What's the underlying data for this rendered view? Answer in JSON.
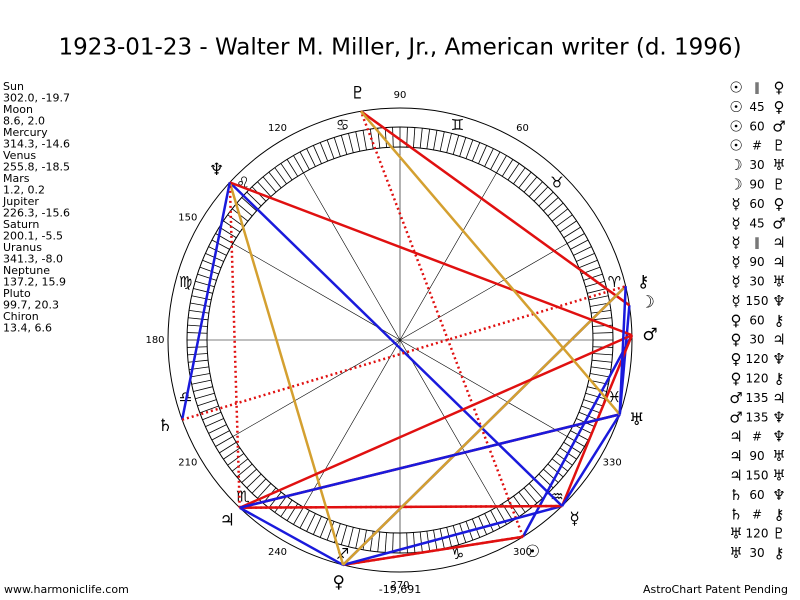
{
  "title": "1923-01-23 - Walter M. Miller, Jr., American writer (d. 1996)",
  "planets": [
    {
      "name": "Sun",
      "glyph": "☉",
      "position": "302.0, -19.7"
    },
    {
      "name": "Moon",
      "glyph": "☽",
      "position": "8.6, 2.0"
    },
    {
      "name": "Mercury",
      "glyph": "☿",
      "position": "314.3, -14.6"
    },
    {
      "name": "Venus",
      "glyph": "♀",
      "position": "255.8, -18.5"
    },
    {
      "name": "Mars",
      "glyph": "♂",
      "position": "1.2, 0.2"
    },
    {
      "name": "Jupiter",
      "glyph": "♃",
      "position": "226.3, -15.6"
    },
    {
      "name": "Saturn",
      "glyph": "♄",
      "position": "200.1, -5.5"
    },
    {
      "name": "Uranus",
      "glyph": "♅",
      "position": "341.3, -8.0"
    },
    {
      "name": "Neptune",
      "glyph": "♆",
      "position": "137.2, 15.9"
    },
    {
      "name": "Pluto",
      "glyph": "♇",
      "position": "99.7, 20.3"
    },
    {
      "name": "Chiron",
      "glyph": "⚷",
      "position": "13.4, 6.6"
    }
  ],
  "signs": [
    "♈",
    "♉",
    "♊",
    "♋",
    "♌",
    "♍",
    "♎",
    "♏",
    "♐",
    "♑",
    "♒",
    "♓"
  ],
  "degree_labels": [
    "60",
    "90",
    "120",
    "150",
    "180",
    "210",
    "240",
    "270",
    "300",
    "330"
  ],
  "bottom_note": "-19,691",
  "aspects": [
    {
      "p1": "☉",
      "aspect": "∥",
      "p2": "♀"
    },
    {
      "p1": "☉",
      "aspect": "45",
      "p2": "♀"
    },
    {
      "p1": "☉",
      "aspect": "60",
      "p2": "♂"
    },
    {
      "p1": "☉",
      "aspect": "#",
      "p2": "♇"
    },
    {
      "p1": "☽",
      "aspect": "30",
      "p2": "♅"
    },
    {
      "p1": "☽",
      "aspect": "90",
      "p2": "♇"
    },
    {
      "p1": "☿",
      "aspect": "60",
      "p2": "♀"
    },
    {
      "p1": "☿",
      "aspect": "45",
      "p2": "♂"
    },
    {
      "p1": "☿",
      "aspect": "∥",
      "p2": "♃"
    },
    {
      "p1": "☿",
      "aspect": "90",
      "p2": "♃"
    },
    {
      "p1": "☿",
      "aspect": "30",
      "p2": "♅"
    },
    {
      "p1": "☿",
      "aspect": "150",
      "p2": "♆"
    },
    {
      "p1": "♀",
      "aspect": "60",
      "p2": "⚷"
    },
    {
      "p1": "♀",
      "aspect": "30",
      "p2": "♃"
    },
    {
      "p1": "♀",
      "aspect": "120",
      "p2": "♆"
    },
    {
      "p1": "♀",
      "aspect": "120",
      "p2": "⚷"
    },
    {
      "p1": "♂",
      "aspect": "135",
      "p2": "♃"
    },
    {
      "p1": "♂",
      "aspect": "135",
      "p2": "♆"
    },
    {
      "p1": "♃",
      "aspect": "#",
      "p2": "♆"
    },
    {
      "p1": "♃",
      "aspect": "90",
      "p2": "♅"
    },
    {
      "p1": "♃",
      "aspect": "150",
      "p2": "♅"
    },
    {
      "p1": "♄",
      "aspect": "60",
      "p2": "♆"
    },
    {
      "p1": "♄",
      "aspect": "#",
      "p2": "⚷"
    },
    {
      "p1": "♅",
      "aspect": "120",
      "p2": "♇"
    },
    {
      "p1": "♅",
      "aspect": "30",
      "p2": "⚷"
    }
  ],
  "footer": {
    "left": "www.harmoniclife.com",
    "right": "AstroChart Patent Pending"
  }
}
